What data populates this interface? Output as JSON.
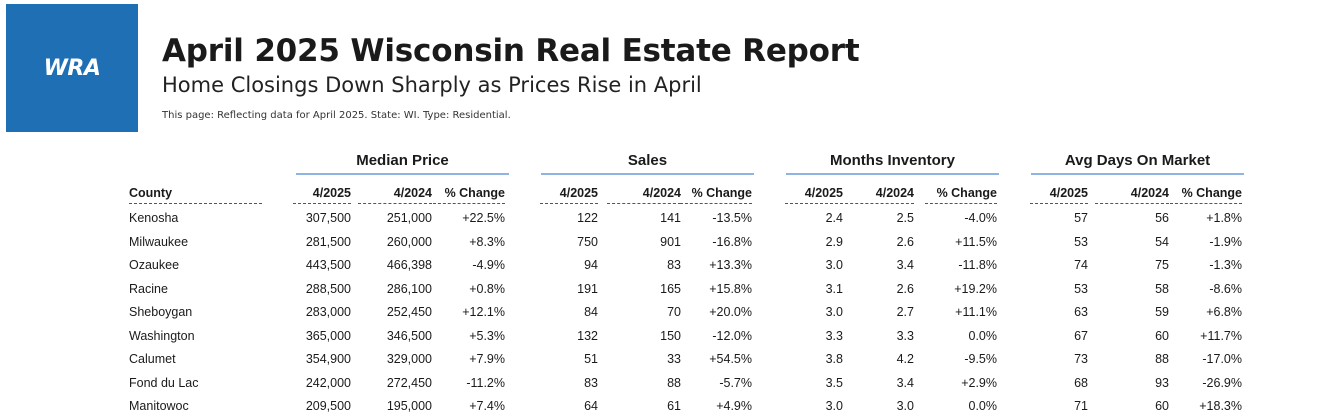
{
  "logo": {
    "text": "WRA"
  },
  "header": {
    "title": "April 2025 Wisconsin Real Estate Report",
    "subtitle": "Home Closings Down Sharply as Prices Rise in April",
    "note": "This page: Reflecting data for April 2025. State: WI. Type: Residential."
  },
  "groups": [
    "Median Price",
    "Sales",
    "Months Inventory",
    "Avg Days On Market"
  ],
  "columns": {
    "county": "County",
    "cur": "4/2025",
    "prev": "4/2024",
    "chg": "% Change"
  },
  "rows": [
    {
      "county": "Kenosha",
      "v": [
        "307,500",
        "251,000",
        "+22.5%",
        "122",
        "141",
        "-13.5%",
        "2.4",
        "2.5",
        "-4.0%",
        "57",
        "56",
        "+1.8%"
      ]
    },
    {
      "county": "Milwaukee",
      "v": [
        "281,500",
        "260,000",
        "+8.3%",
        "750",
        "901",
        "-16.8%",
        "2.9",
        "2.6",
        "+11.5%",
        "53",
        "54",
        "-1.9%"
      ]
    },
    {
      "county": "Ozaukee",
      "v": [
        "443,500",
        "466,398",
        "-4.9%",
        "94",
        "83",
        "+13.3%",
        "3.0",
        "3.4",
        "-11.8%",
        "74",
        "75",
        "-1.3%"
      ]
    },
    {
      "county": "Racine",
      "v": [
        "288,500",
        "286,100",
        "+0.8%",
        "191",
        "165",
        "+15.8%",
        "3.1",
        "2.6",
        "+19.2%",
        "53",
        "58",
        "-8.6%"
      ]
    },
    {
      "county": "Sheboygan",
      "v": [
        "283,000",
        "252,450",
        "+12.1%",
        "84",
        "70",
        "+20.0%",
        "3.0",
        "2.7",
        "+11.1%",
        "63",
        "59",
        "+6.8%"
      ]
    },
    {
      "county": "Washington",
      "v": [
        "365,000",
        "346,500",
        "+5.3%",
        "132",
        "150",
        "-12.0%",
        "3.3",
        "3.3",
        "0.0%",
        "67",
        "60",
        "+11.7%"
      ]
    },
    {
      "county": "Calumet",
      "v": [
        "354,900",
        "329,000",
        "+7.9%",
        "51",
        "33",
        "+54.5%",
        "3.8",
        "4.2",
        "-9.5%",
        "73",
        "88",
        "-17.0%"
      ]
    },
    {
      "county": "Fond du Lac",
      "v": [
        "242,000",
        "272,450",
        "-11.2%",
        "83",
        "88",
        "-5.7%",
        "3.5",
        "3.4",
        "+2.9%",
        "68",
        "93",
        "-26.9%"
      ]
    },
    {
      "county": "Manitowoc",
      "v": [
        "209,500",
        "195,000",
        "+7.4%",
        "64",
        "61",
        "+4.9%",
        "3.0",
        "3.0",
        "0.0%",
        "71",
        "60",
        "+18.3%"
      ]
    }
  ]
}
